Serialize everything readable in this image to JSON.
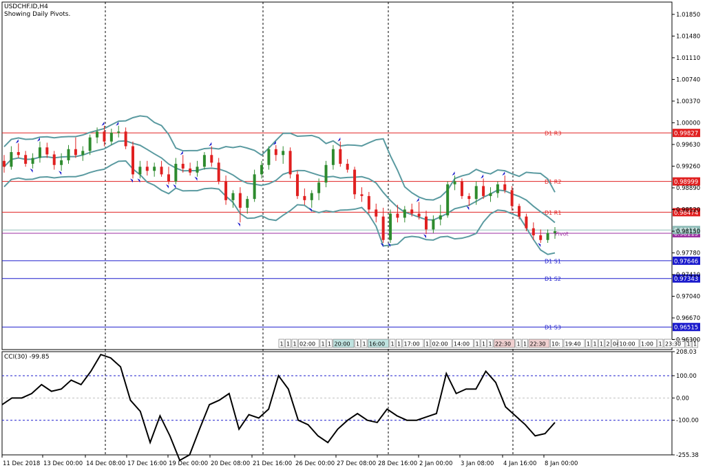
{
  "header": {
    "symbol_line": "USDCHF.ID,H4",
    "subtitle": "Showing Daily Pivots."
  },
  "indicator": {
    "label": "CCI(30) -99.85",
    "levels": [
      208.03,
      100.0,
      0.0,
      -100.0,
      -255.38
    ],
    "level_labels": [
      "208.03",
      "100.00",
      "0.00",
      "-100.00",
      "-255.38"
    ]
  },
  "colors": {
    "bull": "#2e8b2e",
    "bear": "#e02020",
    "band": "#5a9aa0",
    "pivot_resist": "#e02020",
    "pivot_support": "#1a1acc",
    "pivot_p": "#9b2ea0",
    "grid_dash": "#000000",
    "cci_line": "#000000",
    "cci_level": "#1a1acc",
    "cci_zero": "#c0c0c0",
    "price_box": "#8fbdb8"
  },
  "price_axis": {
    "min": 0.9613,
    "max": 1.0206,
    "ticks": [
      1.0185,
      1.0148,
      1.0111,
      1.0074,
      1.0037,
      1.0,
      0.9963,
      0.9926,
      0.9889,
      0.9852,
      0.9815,
      0.9778,
      0.9741,
      0.9704,
      0.9667,
      0.963
    ],
    "tick_labels": [
      "1.01850",
      "1.01480",
      "1.01110",
      "1.00740",
      "1.00370",
      "1.00000",
      "0.99630",
      "0.99260",
      "0.98890",
      "0.98520",
      "0.98150",
      "0.97780",
      "0.97410",
      "0.97040",
      "0.96670",
      "0.96300"
    ]
  },
  "time_axis": {
    "labels": [
      "11 Dec 2018",
      "13 Dec 00:00",
      "14 Dec 08:00",
      "17 Dec 16:00",
      "19 Dec 00:00",
      "20 Dec 08:00",
      "21 Dec 16:00",
      "26 Dec 00:00",
      "27 Dec 08:00",
      "28 Dec 16:00",
      "2 Jan 00:00",
      "3 Jan 08:00",
      "4 Jan 16:00",
      "8 Jan 00:00"
    ],
    "separators": [
      "14 Dec 08:00",
      "21 Dec 16:00",
      "28 Dec 16:00",
      "4 Jan 16:00"
    ]
  },
  "pivots": [
    {
      "name": "D1 R3",
      "value": 0.99827,
      "label": "0.99827",
      "kind": "resist"
    },
    {
      "name": "D1 R2",
      "value": 0.98999,
      "label": "0.98999",
      "kind": "resist"
    },
    {
      "name": "D1 R1",
      "value": 0.98474,
      "label": "0.98474",
      "kind": "resist"
    },
    {
      "name": "Pivot",
      "value": 0.98115,
      "label": "0.98115",
      "kind": "pivot"
    },
    {
      "name": "D1 S1",
      "value": 0.97646,
      "label": "0.97646",
      "kind": "support"
    },
    {
      "name": "D1 S2",
      "value": 0.97343,
      "label": "0.97343",
      "kind": "support"
    },
    {
      "name": "D1 S3",
      "value": 0.96515,
      "label": "0.96515",
      "kind": "support"
    }
  ],
  "current_price": {
    "value": 0.98171,
    "label": "0.98171"
  },
  "event_strip": [
    "1",
    "1",
    "1",
    "02:00",
    "1",
    "1",
    "20:00",
    "1",
    "1",
    "16:00",
    "1",
    "1",
    "17:00",
    "1",
    "02:00",
    "14:00",
    "1",
    "1",
    "1",
    "22:30",
    "1",
    "1",
    "22:30",
    "10:",
    "19:40",
    "1",
    "1",
    "1",
    "2",
    "04",
    "10:00",
    "1:00",
    "1",
    "23:30",
    "1",
    "1"
  ],
  "chart_data": [
    {
      "type": "line",
      "title": "USDCHF.ID,H4",
      "subtitle": "Showing Daily Pivots.",
      "xlabel": "",
      "ylabel": "",
      "ylim": [
        0.9613,
        1.0206
      ],
      "x_labels": [
        "11 Dec 2018",
        "13 Dec 00:00",
        "14 Dec 08:00",
        "17 Dec 16:00",
        "19 Dec 00:00",
        "20 Dec 08:00",
        "21 Dec 16:00",
        "26 Dec 00:00",
        "27 Dec 08:00",
        "28 Dec 16:00",
        "2 Jan 00:00",
        "3 Jan 08:00",
        "4 Jan 16:00",
        "8 Jan 00:00"
      ],
      "candles": [
        [
          0.9935,
          0.9945,
          0.9915,
          0.9925
        ],
        [
          0.9925,
          0.996,
          0.992,
          0.995
        ],
        [
          0.995,
          0.9965,
          0.994,
          0.9945
        ],
        [
          0.9945,
          0.9952,
          0.9925,
          0.993
        ],
        [
          0.993,
          0.9948,
          0.9922,
          0.994
        ],
        [
          0.994,
          0.9968,
          0.9932,
          0.9958
        ],
        [
          0.9958,
          0.9966,
          0.994,
          0.9946
        ],
        [
          0.9946,
          0.9952,
          0.992,
          0.9928
        ],
        [
          0.9928,
          0.9948,
          0.9918,
          0.9936
        ],
        [
          0.9936,
          0.9962,
          0.993,
          0.9955
        ],
        [
          0.9955,
          0.9975,
          0.994,
          0.9945
        ],
        [
          0.9945,
          0.996,
          0.9935,
          0.9952
        ],
        [
          0.9952,
          0.998,
          0.9945,
          0.9975
        ],
        [
          0.9975,
          0.9992,
          0.9965,
          0.9985
        ],
        [
          0.9985,
          0.9995,
          0.996,
          0.9968
        ],
        [
          0.9968,
          0.999,
          0.9962,
          0.9983
        ],
        [
          0.9983,
          0.9995,
          0.9975,
          0.9985
        ],
        [
          0.9985,
          0.9992,
          0.9955,
          0.996
        ],
        [
          0.996,
          0.9968,
          0.9905,
          0.9912
        ],
        [
          0.9912,
          0.9935,
          0.9905,
          0.9925
        ],
        [
          0.9925,
          0.9935,
          0.991,
          0.9918
        ],
        [
          0.9918,
          0.9932,
          0.9908,
          0.9925
        ],
        [
          0.9925,
          0.9935,
          0.9908,
          0.9912
        ],
        [
          0.9912,
          0.9925,
          0.9895,
          0.99
        ],
        [
          0.99,
          0.994,
          0.9895,
          0.993
        ],
        [
          0.993,
          0.9945,
          0.9915,
          0.9922
        ],
        [
          0.9922,
          0.9932,
          0.991,
          0.9915
        ],
        [
          0.9915,
          0.9935,
          0.9908,
          0.9925
        ],
        [
          0.9925,
          0.995,
          0.992,
          0.9945
        ],
        [
          0.9945,
          0.996,
          0.9925,
          0.9932
        ],
        [
          0.9932,
          0.994,
          0.9895,
          0.99
        ],
        [
          0.99,
          0.991,
          0.986,
          0.9868
        ],
        [
          0.9868,
          0.9885,
          0.9855,
          0.988
        ],
        [
          0.988,
          0.989,
          0.983,
          0.9855
        ],
        [
          0.9855,
          0.9875,
          0.9845,
          0.987
        ],
        [
          0.987,
          0.992,
          0.9865,
          0.9912
        ],
        [
          0.9912,
          0.9935,
          0.9905,
          0.9928
        ],
        [
          0.9928,
          0.996,
          0.992,
          0.9955
        ],
        [
          0.9955,
          0.9962,
          0.9935,
          0.9945
        ],
        [
          0.9945,
          0.996,
          0.993,
          0.9952
        ],
        [
          0.9952,
          0.9958,
          0.9905,
          0.9912
        ],
        [
          0.9912,
          0.9918,
          0.987,
          0.9875
        ],
        [
          0.9875,
          0.9888,
          0.986,
          0.9868
        ],
        [
          0.9868,
          0.9885,
          0.9855,
          0.988
        ],
        [
          0.988,
          0.9905,
          0.9868,
          0.9898
        ],
        [
          0.9898,
          0.9935,
          0.989,
          0.9928
        ],
        [
          0.9928,
          0.9962,
          0.992,
          0.9955
        ],
        [
          0.9955,
          0.9968,
          0.9925,
          0.993
        ],
        [
          0.993,
          0.9938,
          0.9915,
          0.992
        ],
        [
          0.992,
          0.9925,
          0.987,
          0.9878
        ],
        [
          0.9878,
          0.989,
          0.9865,
          0.9875
        ],
        [
          0.9875,
          0.9882,
          0.9845,
          0.9852
        ],
        [
          0.9852,
          0.9862,
          0.983,
          0.984
        ],
        [
          0.984,
          0.9855,
          0.9795,
          0.98
        ],
        [
          0.98,
          0.9852,
          0.9795,
          0.9845
        ],
        [
          0.9845,
          0.986,
          0.983,
          0.9838
        ],
        [
          0.9838,
          0.9858,
          0.983,
          0.9852
        ],
        [
          0.9852,
          0.9862,
          0.984,
          0.9845
        ],
        [
          0.9845,
          0.9865,
          0.9835,
          0.984
        ],
        [
          0.984,
          0.985,
          0.981,
          0.9818
        ],
        [
          0.9818,
          0.9842,
          0.9812,
          0.9835
        ],
        [
          0.9835,
          0.986,
          0.9825,
          0.9842
        ],
        [
          0.9842,
          0.99,
          0.9838,
          0.9895
        ],
        [
          0.9895,
          0.991,
          0.9885,
          0.99
        ],
        [
          0.99,
          0.9905,
          0.987,
          0.9875
        ],
        [
          0.9875,
          0.988,
          0.9858,
          0.987
        ],
        [
          0.987,
          0.99,
          0.986,
          0.9892
        ],
        [
          0.9892,
          0.9905,
          0.987,
          0.9875
        ],
        [
          0.9875,
          0.989,
          0.9865,
          0.988
        ],
        [
          0.988,
          0.99,
          0.9872,
          0.9895
        ],
        [
          0.9895,
          0.991,
          0.988,
          0.9885
        ],
        [
          0.9885,
          0.9892,
          0.985,
          0.9858
        ],
        [
          0.9858,
          0.9862,
          0.9835,
          0.984
        ],
        [
          0.984,
          0.9845,
          0.9815,
          0.982
        ],
        [
          0.982,
          0.983,
          0.98,
          0.9808
        ],
        [
          0.9808,
          0.9818,
          0.9795,
          0.98
        ],
        [
          0.98,
          0.9818,
          0.9795,
          0.9812
        ],
        [
          0.9812,
          0.9822,
          0.9802,
          0.9815
        ]
      ],
      "series": [
        {
          "name": "CCI(30)",
          "values": [
            -30,
            0,
            0,
            20,
            60,
            30,
            40,
            80,
            60,
            120,
            195,
            180,
            140,
            -10,
            -60,
            -200,
            -80,
            -170,
            -280,
            -255,
            -140,
            -30,
            -10,
            20,
            -140,
            -75,
            -90,
            -50,
            100,
            40,
            -100,
            -120,
            -170,
            -200,
            -140,
            -100,
            -70,
            -100,
            -110,
            -50,
            -80,
            -100,
            -100,
            -85,
            -70,
            110,
            20,
            40,
            40,
            120,
            70,
            -40,
            -80,
            -120,
            -170,
            -160,
            -110
          ]
        }
      ]
    }
  ]
}
